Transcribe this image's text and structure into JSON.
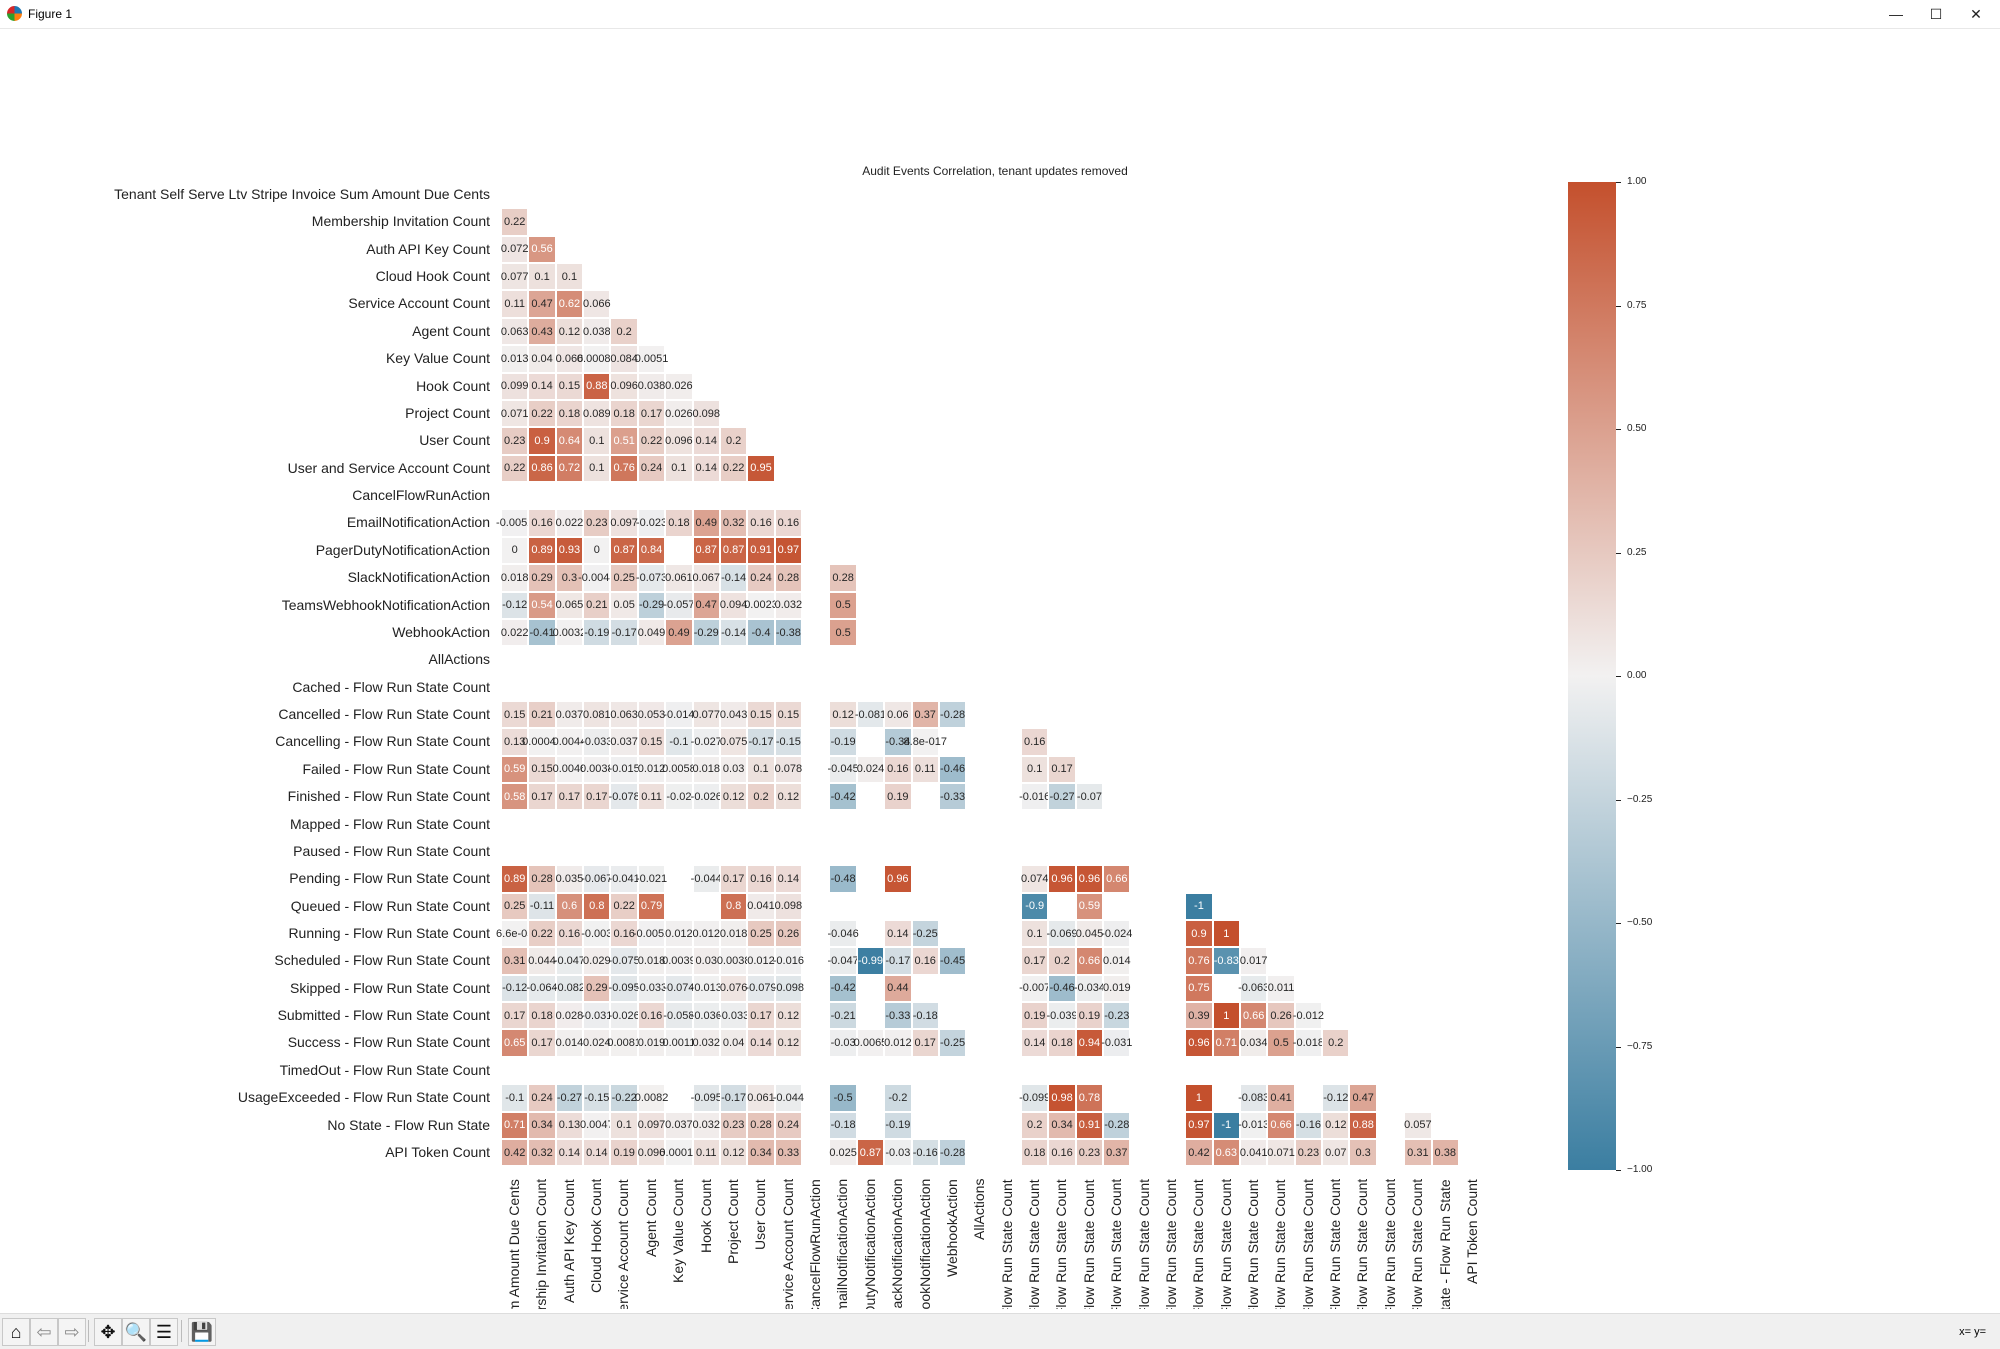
{
  "window": {
    "title": "Figure 1",
    "minimize": "—",
    "maximize": "☐",
    "close": "✕"
  },
  "toolbar": {
    "buttons": [
      {
        "name": "home-icon",
        "glyph": "⌂"
      },
      {
        "name": "back-arrow-icon",
        "glyph": "⇦"
      },
      {
        "name": "forward-arrow-icon",
        "glyph": "⇨"
      },
      {
        "name": "pan-icon",
        "glyph": "✥"
      },
      {
        "name": "zoom-icon",
        "glyph": "🔍"
      },
      {
        "name": "configure-subplots-icon",
        "glyph": "☰"
      },
      {
        "name": "save-icon",
        "glyph": "💾"
      }
    ],
    "status": "x= y="
  },
  "chart_data": {
    "type": "heatmap",
    "title": "Audit Events Correlation, tenant updates removed",
    "labels": [
      "Tenant Self Serve Ltv Stripe Invoice Sum Amount Due Cents",
      "Membership Invitation Count",
      "Auth API Key Count",
      "Cloud Hook Count",
      "Service Account Count",
      "Agent Count",
      "Key Value Count",
      "Hook Count",
      "Project Count",
      "User Count",
      "User and Service Account Count",
      "CancelFlowRunAction",
      "EmailNotificationAction",
      "PagerDutyNotificationAction",
      "SlackNotificationAction",
      "TeamsWebhookNotificationAction",
      "WebhookAction",
      "AllActions",
      "Cached - Flow Run State Count",
      "Cancelled - Flow Run State Count",
      "Cancelling - Flow Run State Count",
      "Failed - Flow Run State Count",
      "Finished - Flow Run State Count",
      "Mapped - Flow Run State Count",
      "Paused - Flow Run State Count",
      "Pending - Flow Run State Count",
      "Queued - Flow Run State Count",
      "Running - Flow Run State Count",
      "Scheduled - Flow Run State Count",
      "Skipped - Flow Run State Count",
      "Submitted - Flow Run State Count",
      "Success - Flow Run State Count",
      "TimedOut - Flow Run State Count",
      "UsageExceeded - Flow Run State Count",
      "No State - Flow Run State",
      "API Token Count"
    ],
    "mask": "upper triangle including diagonal",
    "matrix": [
      [],
      [
        0.22
      ],
      [
        0.072,
        0.56
      ],
      [
        0.077,
        0.1,
        0.1
      ],
      [
        0.11,
        0.47,
        0.62,
        0.066
      ],
      [
        0.063,
        0.43,
        0.12,
        0.038,
        0.2
      ],
      [
        0.013,
        0.04,
        0.066,
        0.00086,
        0.084,
        0.0051
      ],
      [
        0.099,
        0.14,
        0.15,
        0.88,
        0.096,
        0.038,
        0.026
      ],
      [
        0.071,
        0.22,
        0.18,
        0.089,
        0.18,
        0.17,
        0.026,
        0.098
      ],
      [
        0.23,
        0.9,
        0.64,
        0.1,
        0.51,
        0.22,
        0.096,
        0.14,
        0.2
      ],
      [
        0.22,
        0.86,
        0.72,
        0.1,
        0.76,
        0.24,
        0.1,
        0.14,
        0.22,
        0.95
      ],
      [],
      [
        -0.0052,
        0.16,
        0.022,
        0.23,
        0.097,
        -0.023,
        0.18,
        0.49,
        0.32,
        0.16,
        0.16
      ],
      [
        0,
        0.89,
        0.93,
        0,
        0.87,
        0.84,
        null,
        0.87,
        0.87,
        0.91,
        0.97
      ],
      [
        0.018,
        0.29,
        0.3,
        -0.0044,
        0.25,
        -0.073,
        0.061,
        0.067,
        -0.14,
        0.24,
        0.28,
        null,
        0.28
      ],
      [
        -0.12,
        0.54,
        0.065,
        0.21,
        0.05,
        -0.29,
        -0.057,
        0.47,
        0.094,
        0.0023,
        0.032,
        null,
        0.5
      ],
      [
        0.022,
        -0.41,
        0.0032,
        -0.19,
        -0.17,
        0.049,
        0.49,
        -0.29,
        -0.14,
        -0.4,
        -0.38,
        null,
        0.5
      ],
      [],
      [],
      [
        0.15,
        0.21,
        0.037,
        0.081,
        0.063,
        0.053,
        -0.014,
        0.077,
        0.043,
        0.15,
        0.15,
        null,
        0.12,
        -0.081,
        0.06,
        0.37,
        -0.28
      ],
      [
        0.13,
        0.00049,
        0.0044,
        -0.033,
        0.037,
        0.15,
        -0.1,
        -0.027,
        0.075,
        -0.17,
        -0.15,
        null,
        -0.19,
        null,
        -0.34,
        8.8e-17,
        null,
        null,
        null,
        0.16
      ],
      [
        0.59,
        0.15,
        0.0046,
        0.0038,
        -0.015,
        0.012,
        0.0058,
        0.018,
        0.03,
        0.1,
        0.078,
        null,
        -0.045,
        0.024,
        0.16,
        0.11,
        -0.46,
        null,
        null,
        0.1,
        0.17
      ],
      [
        0.58,
        0.17,
        0.17,
        0.17,
        -0.078,
        0.11,
        -0.02,
        -0.026,
        0.12,
        0.2,
        0.12,
        null,
        -0.42,
        null,
        0.19,
        null,
        -0.33,
        null,
        null,
        -0.016,
        -0.27,
        -0.07
      ],
      [],
      [],
      [
        0.89,
        0.28,
        0.035,
        -0.067,
        -0.041,
        -0.021,
        null,
        -0.044,
        0.17,
        0.16,
        0.14,
        null,
        -0.48,
        null,
        0.96,
        null,
        null,
        null,
        null,
        0.074,
        0.96,
        0.96,
        0.66
      ],
      [
        0.25,
        -0.11,
        0.6,
        0.8,
        0.22,
        0.79,
        null,
        null,
        0.8,
        0.041,
        0.098,
        null,
        null,
        null,
        null,
        null,
        null,
        null,
        null,
        -0.9,
        null,
        0.59,
        null,
        null,
        null,
        -1
      ],
      [
        6.6e-05,
        0.22,
        0.16,
        -0.003,
        0.16,
        -0.0052,
        0.012,
        0.012,
        0.018,
        0.25,
        0.26,
        null,
        -0.046,
        null,
        0.14,
        -0.25,
        null,
        null,
        null,
        0.1,
        -0.069,
        0.045,
        -0.024,
        null,
        null,
        0.9,
        1
      ],
      [
        0.31,
        0.044,
        -0.047,
        0.029,
        -0.075,
        0.018,
        0.0039,
        0.03,
        0.0038,
        0.012,
        -0.016,
        null,
        -0.047,
        -0.99,
        -0.17,
        0.16,
        -0.45,
        null,
        null,
        0.17,
        0.2,
        0.66,
        0.014,
        null,
        null,
        0.76,
        -0.83,
        0.017
      ],
      [
        -0.12,
        -0.064,
        -0.082,
        0.29,
        -0.095,
        -0.033,
        -0.074,
        -0.013,
        0.076,
        -0.079,
        -0.098,
        null,
        -0.42,
        null,
        0.44,
        null,
        null,
        null,
        null,
        -0.007,
        -0.46,
        -0.034,
        0.019,
        null,
        null,
        0.75,
        null,
        -0.063,
        0.011
      ],
      [
        0.17,
        0.18,
        0.028,
        -0.031,
        -0.026,
        0.16,
        -0.058,
        -0.036,
        -0.033,
        0.17,
        0.12,
        null,
        -0.21,
        null,
        -0.33,
        -0.18,
        null,
        null,
        null,
        0.19,
        -0.039,
        0.19,
        -0.23,
        null,
        null,
        0.39,
        1,
        0.66,
        0.26,
        -0.012
      ],
      [
        0.65,
        0.17,
        0.014,
        0.024,
        0.0081,
        0.019,
        0.0011,
        0.032,
        0.04,
        0.14,
        0.12,
        null,
        -0.03,
        0.0065,
        0.012,
        0.17,
        -0.25,
        null,
        null,
        0.14,
        0.18,
        0.94,
        -0.031,
        null,
        null,
        0.96,
        0.71,
        0.034,
        0.5,
        -0.018,
        0.2
      ],
      [],
      [
        -0.1,
        0.24,
        -0.27,
        -0.15,
        -0.22,
        0.0082,
        null,
        -0.095,
        -0.17,
        0.061,
        -0.044,
        null,
        -0.5,
        null,
        -0.2,
        null,
        null,
        null,
        null,
        -0.099,
        0.98,
        0.78,
        null,
        null,
        null,
        1,
        null,
        -0.083,
        0.41,
        null,
        -0.12,
        0.47
      ],
      [
        0.71,
        0.34,
        0.13,
        0.0047,
        0.1,
        0.097,
        0.037,
        0.032,
        0.23,
        0.28,
        0.24,
        null,
        -0.18,
        null,
        -0.19,
        null,
        null,
        null,
        null,
        0.2,
        0.34,
        0.91,
        -0.28,
        null,
        null,
        0.97,
        -1,
        -0.013,
        0.66,
        -0.16,
        0.12,
        0.88,
        null,
        0.057
      ],
      [
        0.42,
        0.32,
        0.14,
        0.14,
        0.19,
        0.096,
        0.00011,
        0.11,
        0.12,
        0.34,
        0.33,
        null,
        0.025,
        0.87,
        -0.03,
        -0.16,
        -0.28,
        null,
        null,
        0.18,
        0.16,
        0.23,
        0.37,
        null,
        null,
        0.42,
        0.63,
        0.041,
        0.071,
        0.23,
        0.07,
        0.3,
        null,
        0.31,
        0.38
      ]
    ],
    "vmin": -1,
    "vmax": 1,
    "colormap": {
      "low": "#3b7ea1",
      "mid": "#f2f1f1",
      "high": "#c4502d"
    },
    "colorbar": {
      "ticks": [
        1.0,
        0.75,
        0.5,
        0.25,
        0.0,
        -0.25,
        -0.5,
        -0.75,
        -1.0
      ],
      "tick_labels": [
        "1.00",
        "0.75",
        "0.50",
        "0.25",
        "0.00",
        "−0.25",
        "−0.50",
        "−0.75",
        "−1.00"
      ],
      "placement": "right"
    },
    "annotations": true,
    "grid": false
  }
}
